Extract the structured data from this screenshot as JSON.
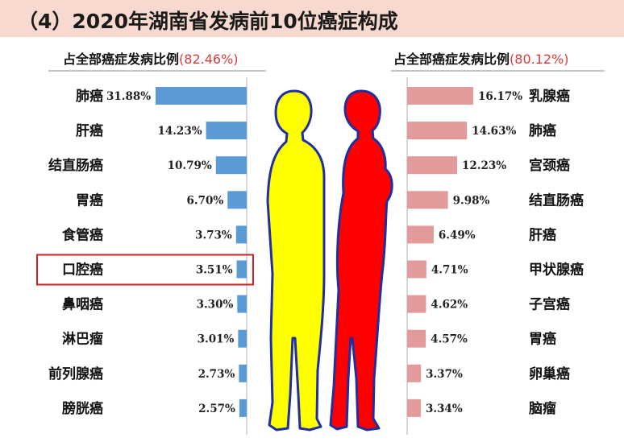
{
  "title": "（4）2020年湖南省发病前10位癌症构成",
  "colors": {
    "male_bar": "#5b9bd5",
    "female_bar": "#e39a9a",
    "male_figure": "#ffff00",
    "female_figure": "#ff0000",
    "figure_outline": "#1f2fa0",
    "highlight_box": "#cc2222",
    "title_band": "#f8d9cf"
  },
  "left": {
    "header_label": "占全部癌症发病比例",
    "header_pct": "(82.46%)"
  },
  "right": {
    "header_label": "占全部癌症发病比例",
    "header_pct": "(80.12%)"
  },
  "highlight": "口腔癌",
  "chart_data": [
    {
      "type": "bar",
      "orientation": "horizontal",
      "direction": "right-to-left",
      "categories": [
        "肺癌",
        "肝癌",
        "结直肠癌",
        "胃癌",
        "食管癌",
        "口腔癌",
        "鼻咽癌",
        "淋巴瘤",
        "前列腺癌",
        "膀胱癌"
      ],
      "values": [
        31.88,
        14.23,
        10.79,
        6.7,
        3.73,
        3.51,
        3.3,
        3.01,
        2.73,
        2.57
      ],
      "value_labels": [
        "31.88%",
        "14.23%",
        "10.79%",
        "6.70%",
        "3.73%",
        "3.51%",
        "3.30%",
        "3.01%",
        "2.73%",
        "2.57%"
      ],
      "title": "占全部癌症发病比例(82.46%)"
    },
    {
      "type": "bar",
      "orientation": "horizontal",
      "direction": "left-to-right",
      "categories": [
        "乳腺癌",
        "肺癌",
        "宫颈癌",
        "结直肠癌",
        "肝癌",
        "甲状腺癌",
        "子宫癌",
        "胃癌",
        "卵巢癌",
        "脑瘤"
      ],
      "values": [
        16.17,
        14.63,
        12.23,
        9.98,
        6.49,
        4.71,
        4.62,
        4.57,
        3.37,
        3.34
      ],
      "value_labels": [
        "16.17%",
        "14.63%",
        "12.23%",
        "9.98%",
        "6.49%",
        "4.71%",
        "4.62%",
        "4.57%",
        "3.37%",
        "3.34%"
      ],
      "title": "占全部癌症发病比例(80.12%)"
    }
  ]
}
